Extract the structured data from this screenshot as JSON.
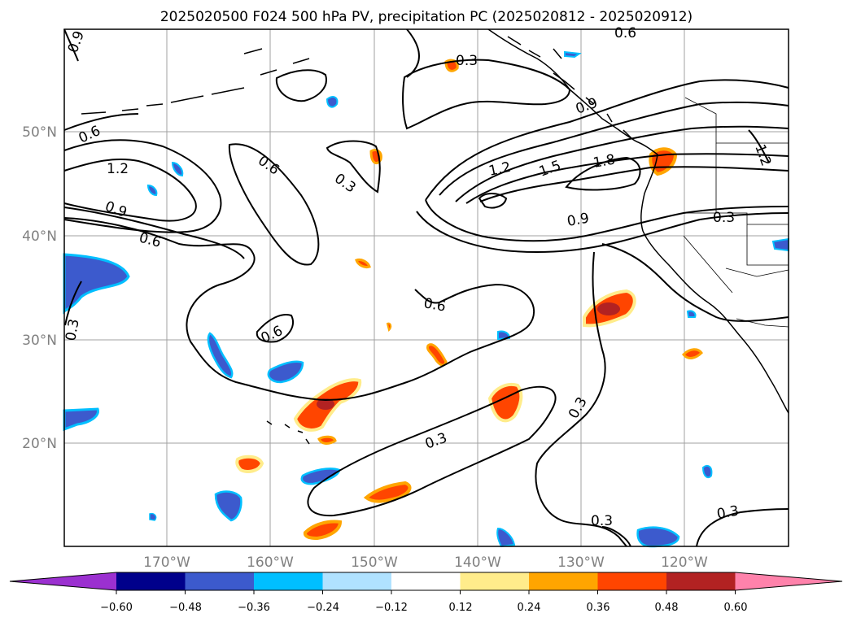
{
  "title": "2025020500 F024 500 hPa PV, precipitation PC (2025020812 - 2025020912)",
  "lat_labels": [
    "50°N",
    "40°N",
    "30°N",
    "20°N"
  ],
  "lon_labels": [
    "170°W",
    "160°W",
    "150°W",
    "140°W",
    "130°W",
    "120°W"
  ],
  "contour_labels": [
    "0.9",
    "0.6",
    "1.2",
    "0.9",
    "0.6",
    "0.6",
    "0.3",
    "0.3",
    "0.9",
    "1.2",
    "1.5",
    "1.8",
    "0.9",
    "0.3",
    "0.6",
    "0.6",
    "0.3",
    "0.3",
    "0.3",
    "0.3",
    "0.3",
    "1.2",
    "0.6"
  ],
  "colorbar": {
    "ticks": [
      "−0.60",
      "−0.48",
      "−0.36",
      "−0.24",
      "−0.12",
      "0.12",
      "0.24",
      "0.36",
      "0.48",
      "0.60"
    ],
    "colors": [
      "#9b30d0",
      "#00008b",
      "#3c5acd",
      "#00bfff",
      "#b0e2ff",
      "#ffffff",
      "#ffec8b",
      "#ffa500",
      "#ff4500",
      "#b22222",
      "#ff82ab"
    ]
  },
  "colors": {
    "neg_strong": "#3c5acd",
    "neg_mid": "#00bfff",
    "pos_light": "#ffec8b",
    "pos_mid": "#ffa500",
    "pos_strong": "#ff4500",
    "pos_max": "#b22222"
  }
}
